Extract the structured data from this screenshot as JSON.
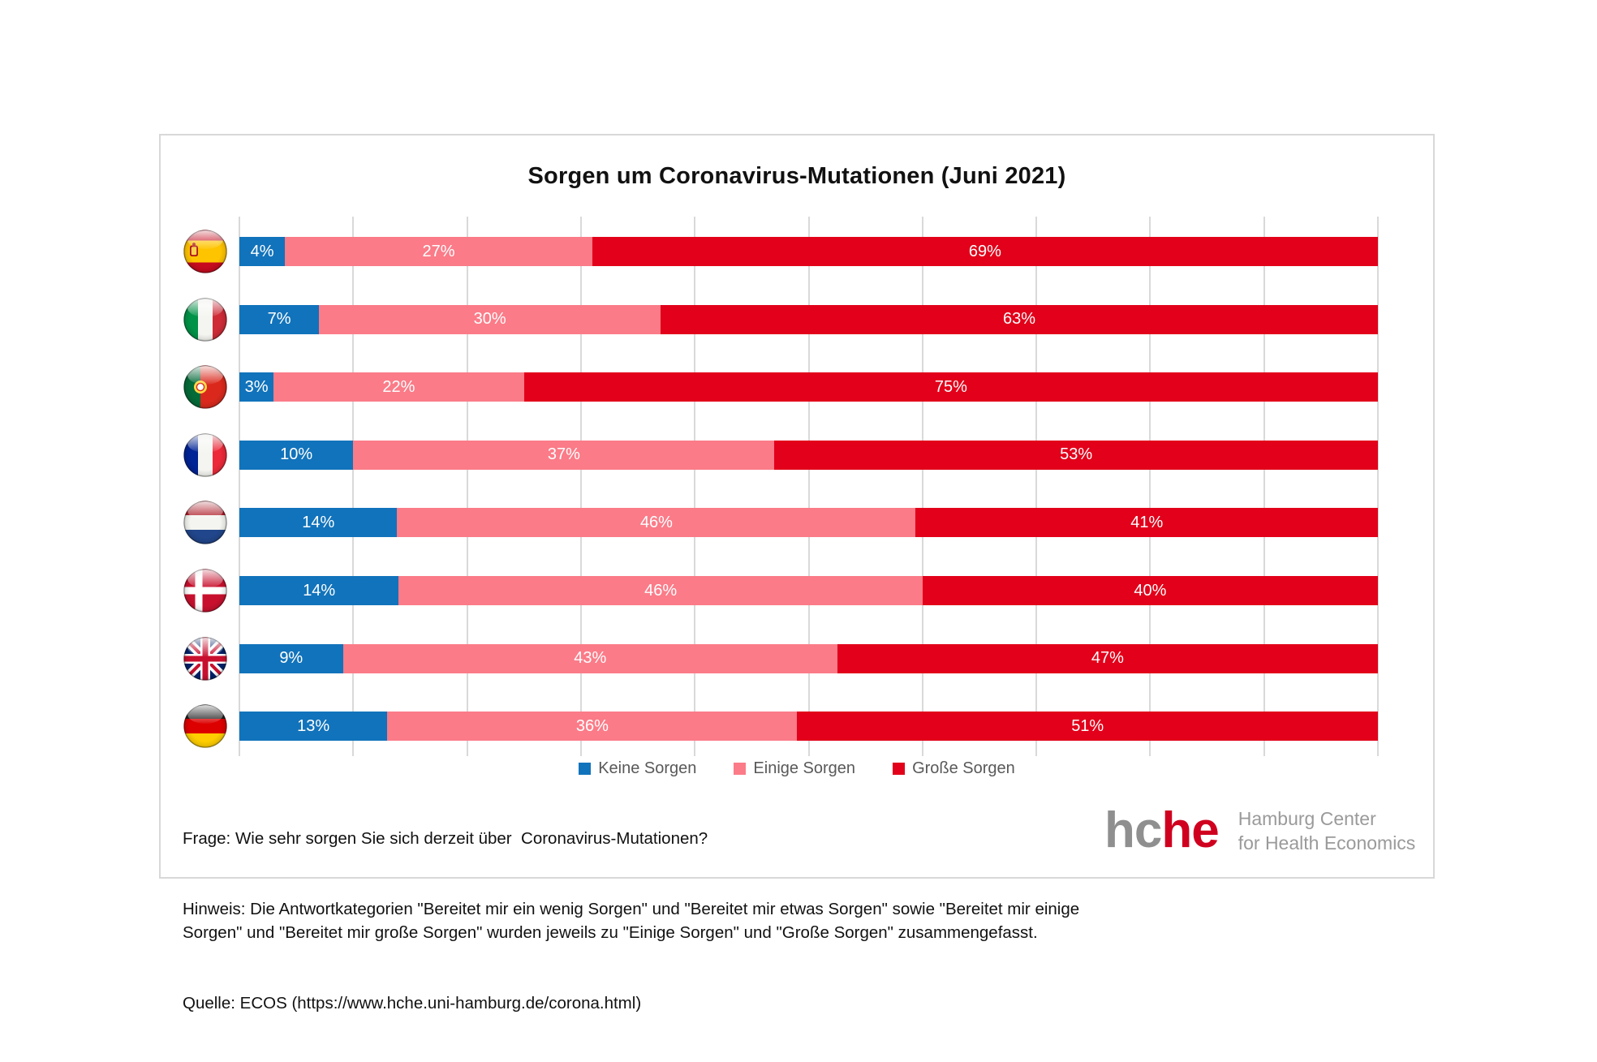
{
  "title": "Sorgen um Coronavirus-Mutationen (Juni 2021)",
  "chart_data": {
    "type": "bar",
    "variant": "horizontal_stacked_100pct",
    "title": "Sorgen um Coronavirus-Mutationen (Juni 2021)",
    "categories": [
      "Spanien",
      "Italien",
      "Portugal",
      "Frankreich",
      "Niederlande",
      "Dänemark",
      "Großbritannien",
      "Deutschland"
    ],
    "flags": [
      "es",
      "it",
      "pt",
      "fr",
      "nl",
      "dk",
      "gb",
      "de"
    ],
    "series": [
      {
        "name": "Keine Sorgen",
        "color": "#1173BB",
        "values": [
          4,
          7,
          3,
          10,
          14,
          14,
          9,
          13
        ]
      },
      {
        "name": "Einige Sorgen",
        "color": "#FB7B88",
        "values": [
          27,
          30,
          22,
          37,
          46,
          46,
          43,
          36
        ]
      },
      {
        "name": "Große Sorgen",
        "color": "#E2001A",
        "values": [
          69,
          63,
          75,
          53,
          41,
          40,
          47,
          51
        ]
      }
    ],
    "xlim": [
      0,
      100
    ],
    "gridline_step": 10,
    "grid": true,
    "value_suffix": "%",
    "legend_position": "bottom"
  },
  "legend": {
    "items": [
      {
        "label": "Keine Sorgen",
        "color": "#1173BB"
      },
      {
        "label": "Einige Sorgen",
        "color": "#FB7B88"
      },
      {
        "label": "Große Sorgen",
        "color": "#E2001A"
      }
    ]
  },
  "footer": {
    "frage": "Frage: Wie sehr sorgen Sie sich derzeit über  Coronavirus-Mutationen?",
    "hinweis": "Hinweis: Die Antwortkategorien \"Bereitet mir ein wenig Sorgen\" und \"Bereitet mir etwas Sorgen\" sowie \"Bereitet mir einige Sorgen\" und \"Bereitet mir große Sorgen\" wurden jeweils zu \"Einige Sorgen\" und \"Große Sorgen\" zusammengefasst.",
    "quelle": "Quelle: ECOS (https://www.hche.uni-hamburg.de/corona.html)"
  },
  "logo": {
    "acronym_gray": "hc",
    "acronym_red": "he",
    "name_line1": "Hamburg Center",
    "name_line2": "for Health Economics",
    "gray": "#8F8F8F",
    "red": "#D0001F"
  },
  "colors": {
    "grid": "#D9D9D9",
    "card_border": "#D8D8D8",
    "legend_text": "#595959",
    "bar_label": "#FFFFFF"
  }
}
